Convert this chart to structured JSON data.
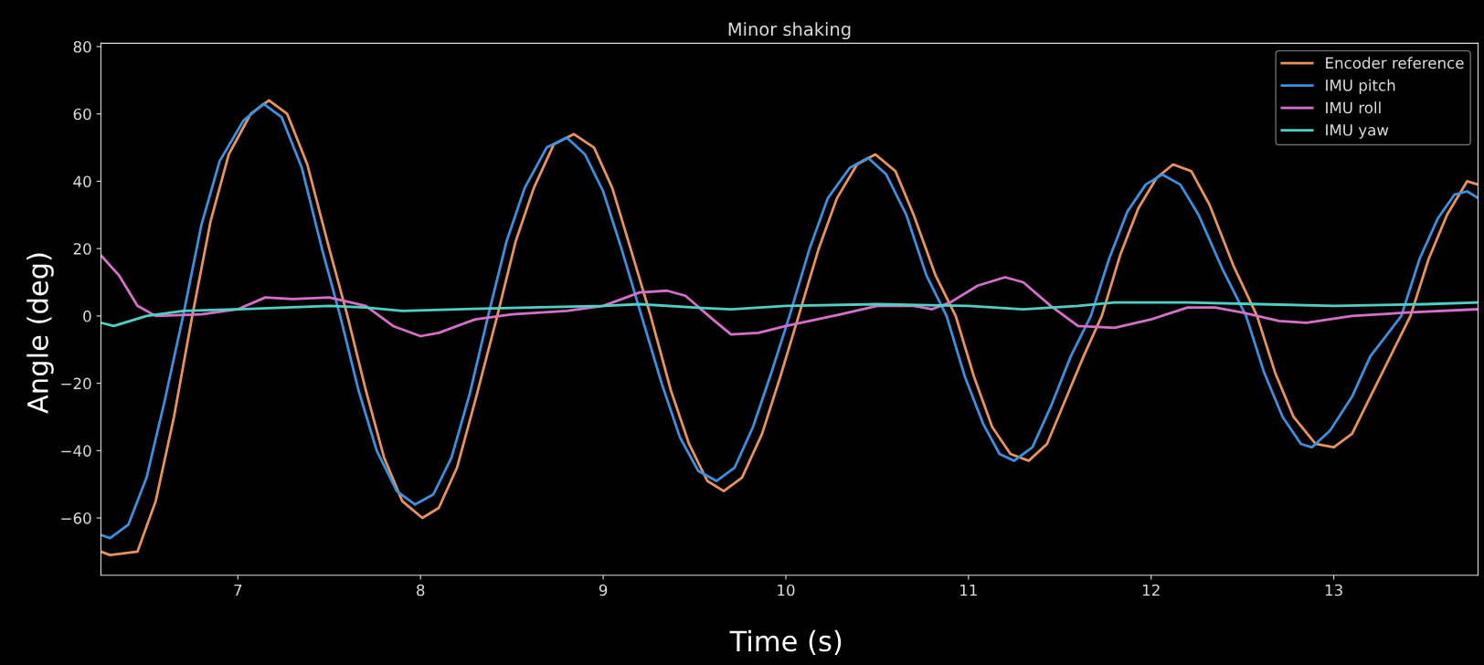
{
  "chart_data": {
    "type": "line",
    "title": "Minor shaking",
    "xlabel": "Time (s)",
    "ylabel": "Angle (deg)",
    "xlim": [
      6.25,
      13.79
    ],
    "ylim": [
      -77,
      81
    ],
    "xticks": [
      7,
      8,
      9,
      10,
      11,
      12,
      13
    ],
    "yticks": [
      -60,
      -40,
      -20,
      0,
      20,
      40,
      60,
      80
    ],
    "grid": false,
    "legend": "top right",
    "marker": "none",
    "line_style": "solid",
    "series": [
      {
        "name": "Encoder reference",
        "color": "#e8935c",
        "x": [
          6.25,
          6.3,
          6.45,
          6.55,
          6.65,
          6.75,
          6.85,
          6.95,
          7.07,
          7.17,
          7.27,
          7.38,
          7.5,
          7.6,
          7.7,
          7.8,
          7.9,
          8.01,
          8.1,
          8.2,
          8.3,
          8.42,
          8.52,
          8.62,
          8.73,
          8.84,
          8.95,
          9.05,
          9.15,
          9.26,
          9.37,
          9.47,
          9.57,
          9.66,
          9.76,
          9.87,
          9.97,
          10.07,
          10.18,
          10.28,
          10.39,
          10.49,
          10.6,
          10.7,
          10.82,
          10.93,
          11.03,
          11.13,
          11.23,
          11.33,
          11.43,
          11.53,
          11.63,
          11.73,
          11.83,
          11.93,
          12.03,
          12.12,
          12.22,
          12.32,
          12.45,
          12.58,
          12.68,
          12.78,
          12.9,
          13.0,
          13.1,
          13.2,
          13.31,
          13.42,
          13.52,
          13.62,
          13.73,
          13.79
        ],
        "values": [
          -70,
          -71,
          -70,
          -55,
          -30,
          0,
          28,
          48,
          60,
          64,
          60,
          45,
          20,
          0,
          -22,
          -42,
          -55,
          -60,
          -57,
          -45,
          -25,
          0,
          22,
          38,
          51,
          54,
          50,
          38,
          20,
          0,
          -22,
          -38,
          -49,
          -52,
          -48,
          -35,
          -18,
          0,
          20,
          35,
          45,
          48,
          43,
          30,
          12,
          0,
          -18,
          -33,
          -41,
          -43,
          -38,
          -25,
          -12,
          0,
          18,
          32,
          41,
          45,
          43,
          33,
          15,
          0,
          -17,
          -30,
          -38,
          -39,
          -35,
          -24,
          -12,
          0,
          17,
          30,
          40,
          39
        ]
      },
      {
        "name": "IMU pitch",
        "color": "#3d8fe0",
        "x": [
          6.25,
          6.3,
          6.4,
          6.5,
          6.6,
          6.7,
          6.8,
          6.9,
          7.03,
          7.14,
          7.24,
          7.35,
          7.46,
          7.56,
          7.66,
          7.76,
          7.87,
          7.97,
          8.07,
          8.17,
          8.27,
          8.37,
          8.47,
          8.57,
          8.69,
          8.8,
          8.9,
          9.0,
          9.1,
          9.21,
          9.32,
          9.42,
          9.52,
          9.62,
          9.72,
          9.82,
          9.92,
          10.02,
          10.13,
          10.23,
          10.35,
          10.45,
          10.55,
          10.66,
          10.77,
          10.88,
          10.98,
          11.08,
          11.17,
          11.25,
          11.35,
          11.45,
          11.56,
          11.67,
          11.77,
          11.87,
          11.97,
          12.06,
          12.16,
          12.26,
          12.39,
          12.52,
          12.62,
          12.72,
          12.82,
          12.88,
          12.98,
          13.1,
          13.2,
          13.37,
          13.47,
          13.57,
          13.66,
          13.73,
          13.79
        ],
        "values": [
          -65,
          -66,
          -62,
          -48,
          -25,
          0,
          27,
          46,
          58,
          63,
          59,
          44,
          20,
          0,
          -22,
          -40,
          -52,
          -56,
          -53,
          -42,
          -23,
          0,
          22,
          38,
          50,
          53,
          48,
          37,
          20,
          0,
          -20,
          -36,
          -46,
          -49,
          -45,
          -33,
          -17,
          0,
          20,
          35,
          44,
          47,
          42,
          30,
          12,
          0,
          -18,
          -32,
          -41,
          -43,
          -39,
          -27,
          -12,
          0,
          17,
          31,
          39,
          42,
          39,
          30,
          14,
          0,
          -17,
          -30,
          -38,
          -39,
          -34,
          -24,
          -12,
          0,
          17,
          29,
          36,
          37,
          35
        ]
      },
      {
        "name": "IMU roll",
        "color": "#d66fca",
        "x": [
          6.25,
          6.35,
          6.45,
          6.55,
          6.8,
          7.0,
          7.15,
          7.3,
          7.5,
          7.7,
          7.85,
          8.0,
          8.1,
          8.3,
          8.5,
          8.8,
          9.0,
          9.2,
          9.35,
          9.45,
          9.6,
          9.7,
          9.85,
          10.0,
          10.3,
          10.5,
          10.7,
          10.8,
          10.9,
          11.05,
          11.2,
          11.3,
          11.45,
          11.6,
          11.8,
          12.0,
          12.2,
          12.35,
          12.5,
          12.7,
          12.85,
          13.1,
          13.4,
          13.79
        ],
        "values": [
          18,
          12,
          3,
          0,
          0.5,
          2,
          5.5,
          5,
          5.5,
          3,
          -3,
          -6,
          -5,
          -1,
          0.5,
          1.5,
          3,
          7,
          7.5,
          6,
          -1,
          -5.5,
          -5,
          -3,
          0.5,
          3,
          3,
          2,
          4,
          9,
          11.5,
          10,
          3,
          -3,
          -3.5,
          -1,
          2.5,
          2.5,
          1,
          -1.5,
          -2,
          0,
          1,
          2
        ]
      },
      {
        "name": "IMU yaw",
        "color": "#4fd0c4",
        "x": [
          6.25,
          6.32,
          6.5,
          6.7,
          7.0,
          7.5,
          7.7,
          7.9,
          8.2,
          8.6,
          9.0,
          9.2,
          9.5,
          9.7,
          10.0,
          10.5,
          11.0,
          11.3,
          11.6,
          11.8,
          12.2,
          12.6,
          13.0,
          13.5,
          13.79
        ],
        "values": [
          -2,
          -3,
          0,
          1.5,
          2,
          3,
          2.5,
          1.5,
          2,
          2.5,
          3,
          3.5,
          2.5,
          2,
          3,
          3.5,
          3,
          2,
          3,
          4,
          4,
          3.5,
          3,
          3.5,
          4
        ]
      }
    ]
  }
}
